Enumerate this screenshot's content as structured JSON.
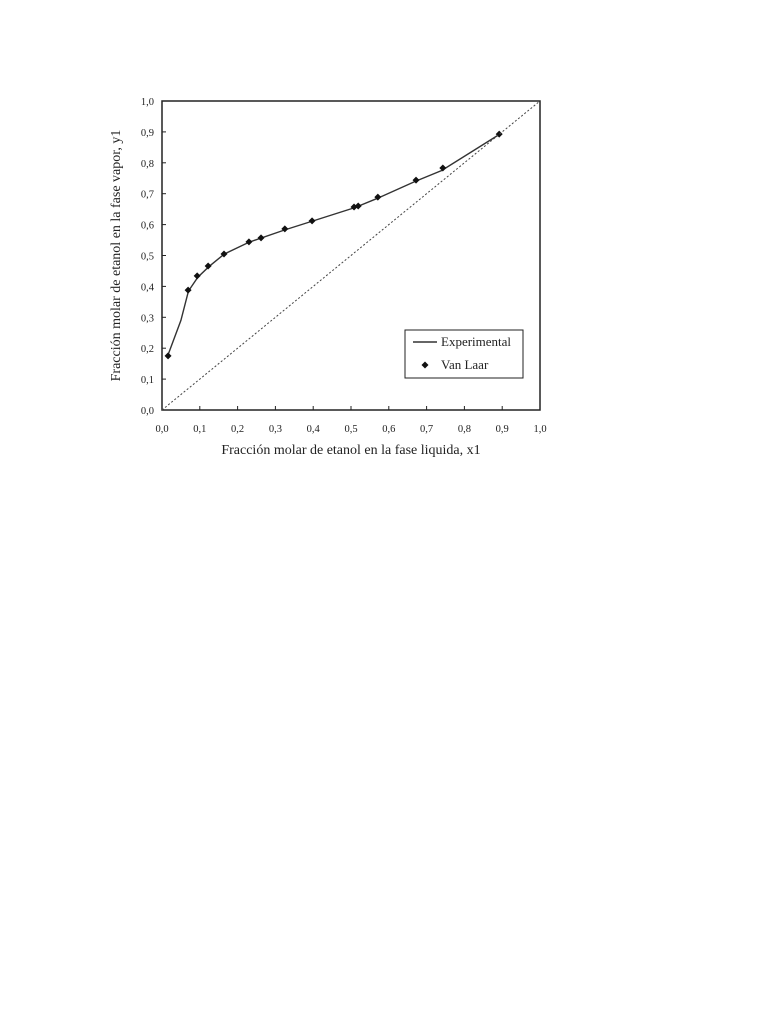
{
  "chart_data": {
    "type": "line",
    "x_label": "Fracción molar de etanol en la fase liquida, x1",
    "y_label": "Fracción molar de etanol en la fase vapor, y1",
    "xlim": [
      0,
      1
    ],
    "ylim": [
      0,
      1
    ],
    "xticks": [
      {
        "value": 0,
        "label": "0,0"
      },
      {
        "value": 0.1,
        "label": "0,1"
      },
      {
        "value": 0.2,
        "label": "0,2"
      },
      {
        "value": 0.3,
        "label": "0,3"
      },
      {
        "value": 0.4,
        "label": "0,4"
      },
      {
        "value": 0.5,
        "label": "0,5"
      },
      {
        "value": 0.6,
        "label": "0,6"
      },
      {
        "value": 0.7,
        "label": "0,7"
      },
      {
        "value": 0.8,
        "label": "0,8"
      },
      {
        "value": 0.9,
        "label": "0,9"
      },
      {
        "value": 1,
        "label": "1,0"
      }
    ],
    "yticks": [
      {
        "value": 0,
        "label": "0,0"
      },
      {
        "value": 0.1,
        "label": "0,1"
      },
      {
        "value": 0.2,
        "label": "0,2"
      },
      {
        "value": 0.3,
        "label": "0,3"
      },
      {
        "value": 0.4,
        "label": "0,4"
      },
      {
        "value": 0.5,
        "label": "0,5"
      },
      {
        "value": 0.6,
        "label": "0,6"
      },
      {
        "value": 0.7,
        "label": "0,7"
      },
      {
        "value": 0.8,
        "label": "0,8"
      },
      {
        "value": 0.9,
        "label": "0,9"
      },
      {
        "value": 1,
        "label": "1,0"
      }
    ],
    "legend": "lower right",
    "series": [
      {
        "name": "Experimental",
        "style": "line",
        "color": "#333333",
        "x": [
          0.015,
          0.05,
          0.07,
          0.095,
          0.125,
          0.165,
          0.23,
          0.325,
          0.4,
          0.51,
          0.57,
          0.67,
          0.74,
          0.89
        ],
        "values": [
          0.175,
          0.29,
          0.385,
          0.43,
          0.465,
          0.505,
          0.543,
          0.583,
          0.612,
          0.655,
          0.685,
          0.74,
          0.775,
          0.89
        ]
      },
      {
        "name": "Van Laar",
        "style": "marker",
        "color": "#111111",
        "x": [
          0.016,
          0.069,
          0.093,
          0.122,
          0.164,
          0.23,
          0.262,
          0.325,
          0.397,
          0.508,
          0.519,
          0.571,
          0.672,
          0.743,
          0.892
        ],
        "values": [
          0.175,
          0.388,
          0.434,
          0.466,
          0.505,
          0.544,
          0.557,
          0.586,
          0.612,
          0.657,
          0.66,
          0.689,
          0.744,
          0.783,
          0.893
        ]
      },
      {
        "style": "dotted",
        "color": "#444444",
        "x": [
          0,
          1
        ],
        "values": [
          0,
          1
        ]
      }
    ]
  }
}
